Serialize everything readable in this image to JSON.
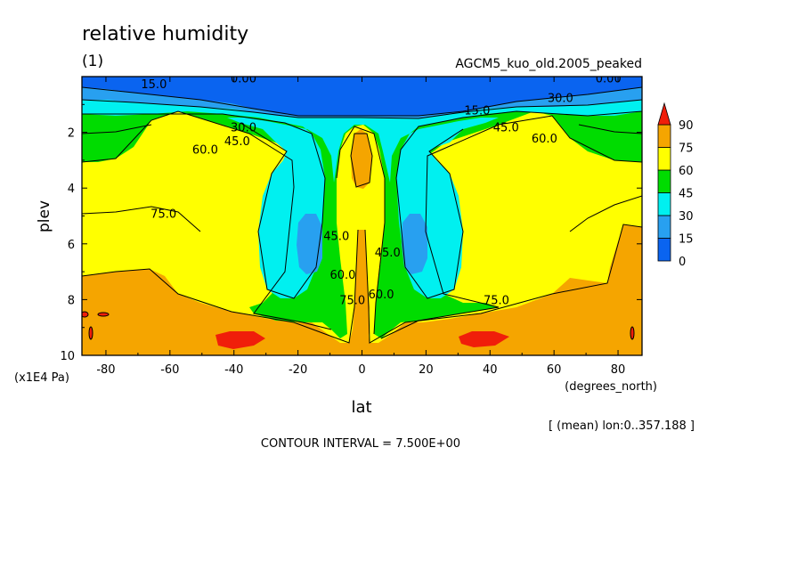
{
  "header": {
    "title": "relative humidity",
    "panel_id": "(1)",
    "run_name": "AGCM5_kuo_old.2005_peaked"
  },
  "footer": {
    "mean_note": "[ (mean) lon:0..357.188 ]",
    "contour_interval": "CONTOUR INTERVAL = 7.500E+00"
  },
  "chart_data": {
    "type": "contour",
    "title": "relative humidity",
    "xlabel": "lat",
    "x_units": "(degrees_north)",
    "ylabel": "plev",
    "y_units": "(x1E4 Pa)",
    "xlim": [
      -87.5,
      87.5
    ],
    "ylim": [
      0,
      10
    ],
    "y_inverted": true,
    "x_ticks": [
      "-80",
      "-60",
      "-40",
      "-20",
      "0",
      "20",
      "40",
      "60",
      "80"
    ],
    "x_tick_values": [
      -80,
      -60,
      -40,
      -20,
      0,
      20,
      40,
      60,
      80
    ],
    "y_ticks": [
      "2",
      "4",
      "6",
      "8",
      "10"
    ],
    "y_tick_values": [
      2,
      4,
      6,
      8,
      10
    ],
    "contour_interval": 7.5,
    "legend": {
      "labels": [
        "90",
        "75",
        "60",
        "45",
        "30",
        "15",
        "0"
      ],
      "levels": [
        0,
        15,
        30,
        45,
        60,
        75,
        90
      ],
      "colors": [
        "#0a64f0",
        "#28a0f0",
        "#00f0f0",
        "#00dc00",
        "#ffff00",
        "#f5a500",
        "#f01e0a"
      ]
    },
    "contour_labels": [
      {
        "text": "0.00",
        "lat": -37,
        "plev": 0.05
      },
      {
        "text": "0.00",
        "lat": 77,
        "plev": 0.05
      },
      {
        "text": "15.0",
        "lat": -65,
        "plev": 0.25
      },
      {
        "text": "15.0",
        "lat": 36,
        "plev": 1.2
      },
      {
        "text": "30.0",
        "lat": -37,
        "plev": 1.8
      },
      {
        "text": "30.0",
        "lat": 62,
        "plev": 0.75
      },
      {
        "text": "45.0",
        "lat": -39,
        "plev": 2.3
      },
      {
        "text": "45.0",
        "lat": 45,
        "plev": 1.8
      },
      {
        "text": "60.0",
        "lat": -49,
        "plev": 2.6
      },
      {
        "text": "60.0",
        "lat": 57,
        "plev": 2.2
      },
      {
        "text": "75.0",
        "lat": -62,
        "plev": 4.9
      },
      {
        "text": "75.0",
        "lat": 42,
        "plev": 8.0
      },
      {
        "text": "45.0",
        "lat": -8,
        "plev": 5.7
      },
      {
        "text": "45.0",
        "lat": 8,
        "plev": 6.3
      },
      {
        "text": "60.0",
        "lat": -6,
        "plev": 7.1
      },
      {
        "text": "60.0",
        "lat": 6,
        "plev": 7.8
      },
      {
        "text": "75.0",
        "lat": -3,
        "plev": 8.0
      }
    ]
  }
}
